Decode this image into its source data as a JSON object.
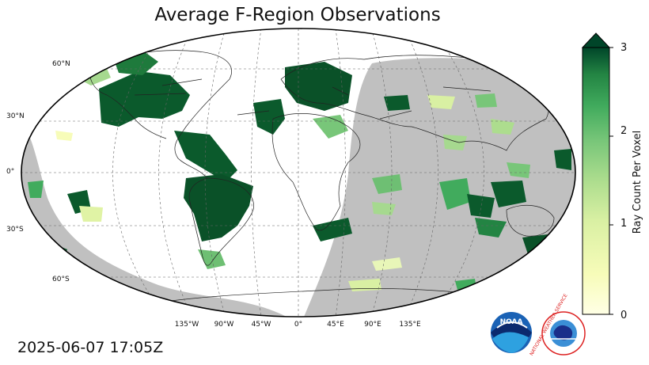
{
  "title": "Average F-Region Observations",
  "timestamp": "2025-06-07 17:05Z",
  "map": {
    "lat_labels": [
      "60°N",
      "30°N",
      "0°",
      "30°S",
      "60°S"
    ],
    "lon_labels": [
      "135°W",
      "90°W",
      "45°W",
      "0°",
      "45°E",
      "90°E",
      "135°E"
    ],
    "night_shade_color": "#c0c0c0",
    "data_colormap": "Greens"
  },
  "colorbar": {
    "label": "Ray Count Per Voxel",
    "ticks": [
      "0",
      "1",
      "2",
      "3"
    ],
    "min": 0,
    "max": 3,
    "extend": "max",
    "color_low": "#ffffe5",
    "color_high": "#004529"
  },
  "logos": {
    "noaa_text": "NOAA",
    "nws_text": "NATIONAL WEATHER SERVICE"
  }
}
